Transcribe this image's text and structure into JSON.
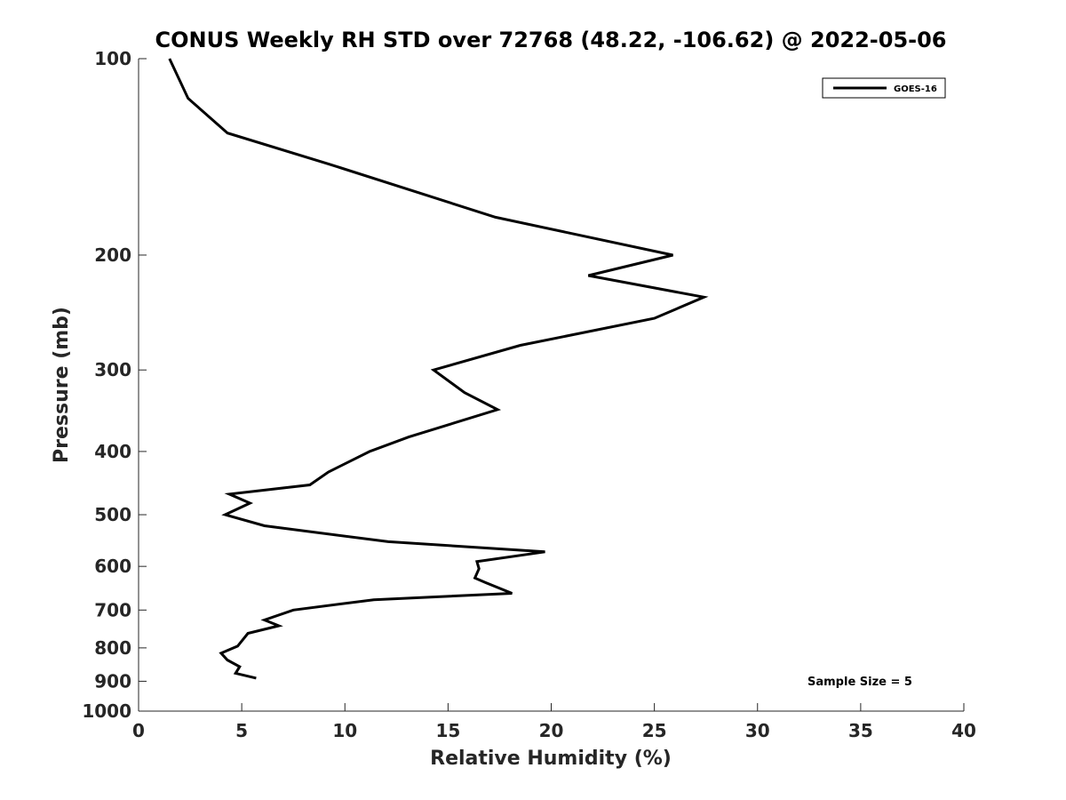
{
  "chart_data": {
    "type": "line",
    "title": "CONUS Weekly RH STD over 72768 (48.22, -106.62) @ 2022-05-06",
    "xlabel": "Relative Humidity (%)",
    "ylabel": "Pressure (mb)",
    "xlim": [
      0,
      40
    ],
    "ylim": [
      100,
      1000
    ],
    "yscale": "log",
    "y_reversed": true,
    "grid": false,
    "x_ticks": [
      0,
      5,
      10,
      15,
      20,
      25,
      30,
      35,
      40
    ],
    "y_ticks": [
      100,
      200,
      300,
      400,
      500,
      600,
      700,
      800,
      900,
      1000
    ],
    "legend_position": "top-right",
    "annotation": "Sample Size = 5",
    "line_color": "#000000",
    "series": [
      {
        "name": "GOES-16",
        "x": [
          1.5,
          2.4,
          4.3,
          9.2,
          17.3,
          25.9,
          21.8,
          27.4,
          25.0,
          18.5,
          14.3,
          15.8,
          17.4,
          13.1,
          11.2,
          9.2,
          8.3,
          4.4,
          5.4,
          4.2,
          6.1,
          12.1,
          19.7,
          16.4,
          16.5,
          16.3,
          16.8,
          18.1,
          11.4,
          7.5,
          6.1,
          6.8,
          5.3,
          4.8,
          4.0,
          4.3,
          4.9,
          4.7,
          5.7
        ],
        "y": [
          100,
          115,
          130,
          145,
          175,
          200,
          215,
          232,
          250,
          275,
          300,
          325,
          345,
          380,
          400,
          430,
          450,
          465,
          480,
          500,
          520,
          550,
          570,
          590,
          605,
          625,
          635,
          660,
          675,
          700,
          725,
          740,
          760,
          795,
          815,
          835,
          855,
          875,
          890
        ]
      }
    ]
  }
}
